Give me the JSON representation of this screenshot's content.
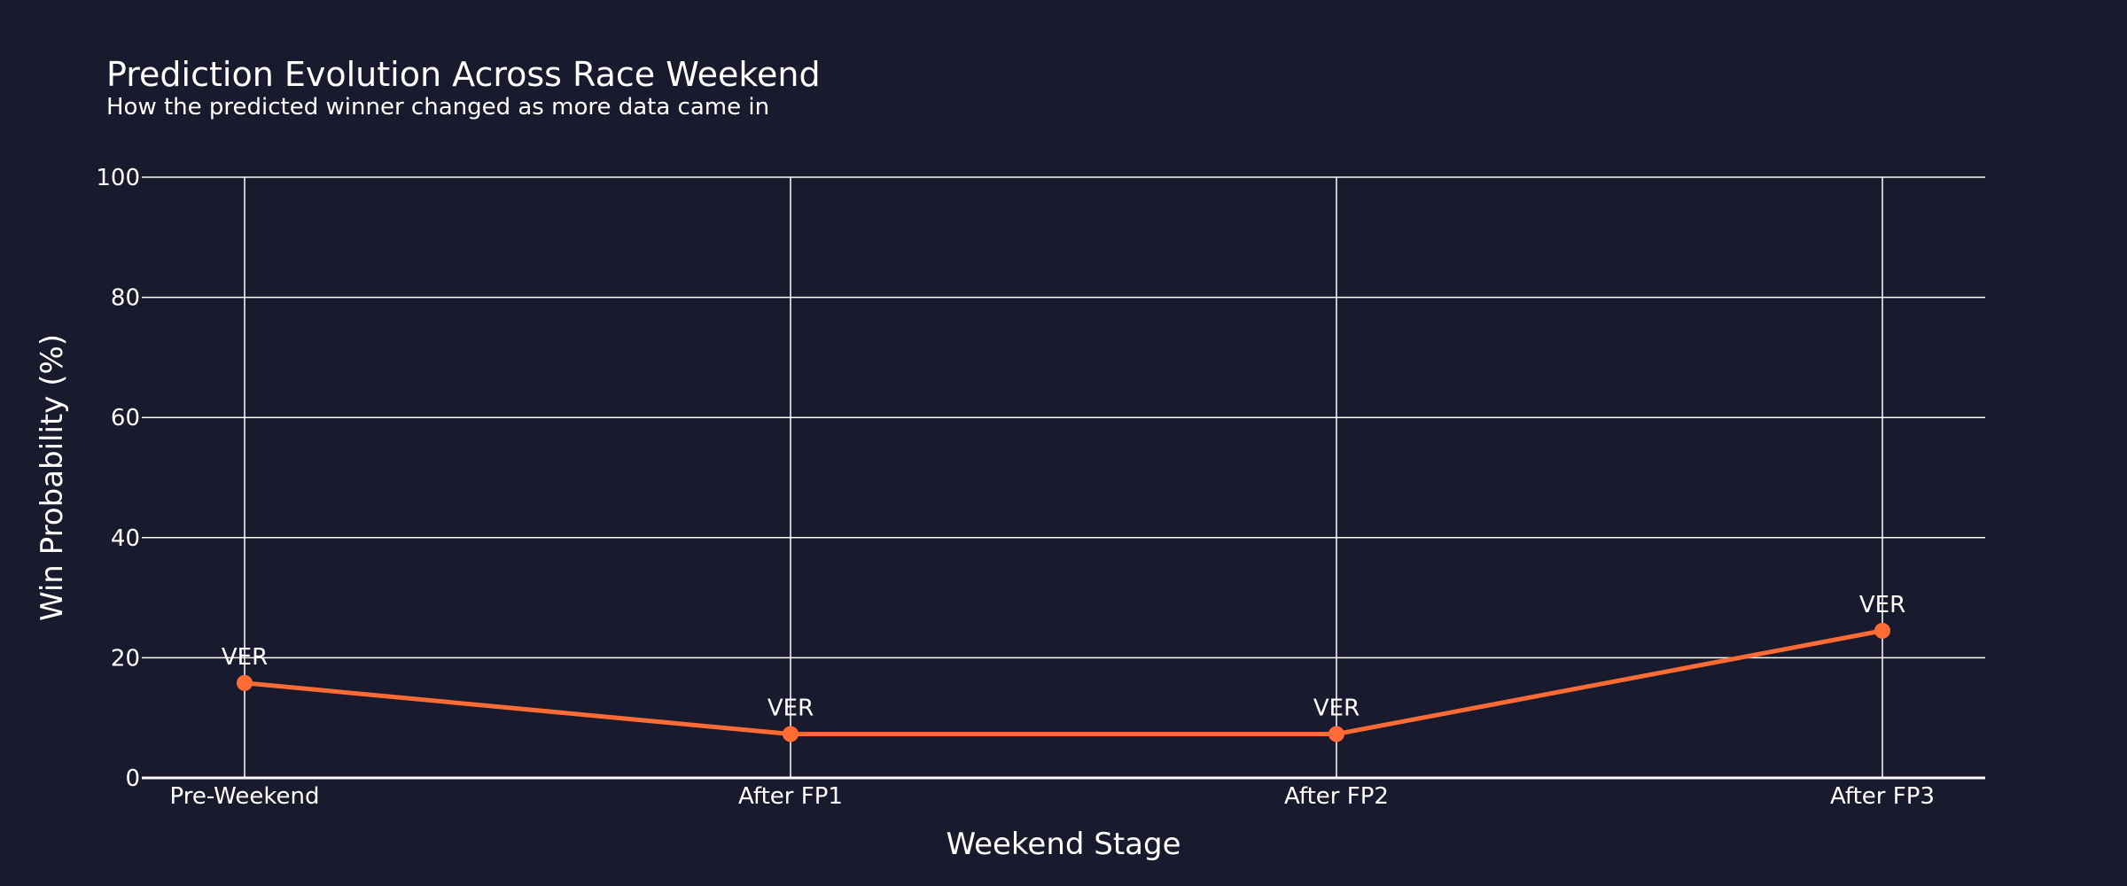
{
  "chart_data": {
    "type": "line",
    "title": "Prediction Evolution Across Race Weekend",
    "subtitle": "How the predicted winner changed as more data came in",
    "xlabel": "Weekend Stage",
    "ylabel": "Win Probability (%)",
    "categories": [
      "Pre-Weekend",
      "After FP1",
      "After FP2",
      "After FP3"
    ],
    "ylim": [
      0,
      100
    ],
    "yticks": [
      0,
      20,
      40,
      60,
      80,
      100
    ],
    "grid": true,
    "series": [
      {
        "values": [
          15.8,
          7.3,
          7.3,
          24.5
        ],
        "point_labels": [
          "VER",
          "VER",
          "VER",
          "VER"
        ],
        "color": "#ff6b35"
      }
    ],
    "colors": {
      "background": "#1a1a2e",
      "grid": "#ffffff",
      "text": "#ffffff",
      "line": "#ff6b35"
    }
  }
}
